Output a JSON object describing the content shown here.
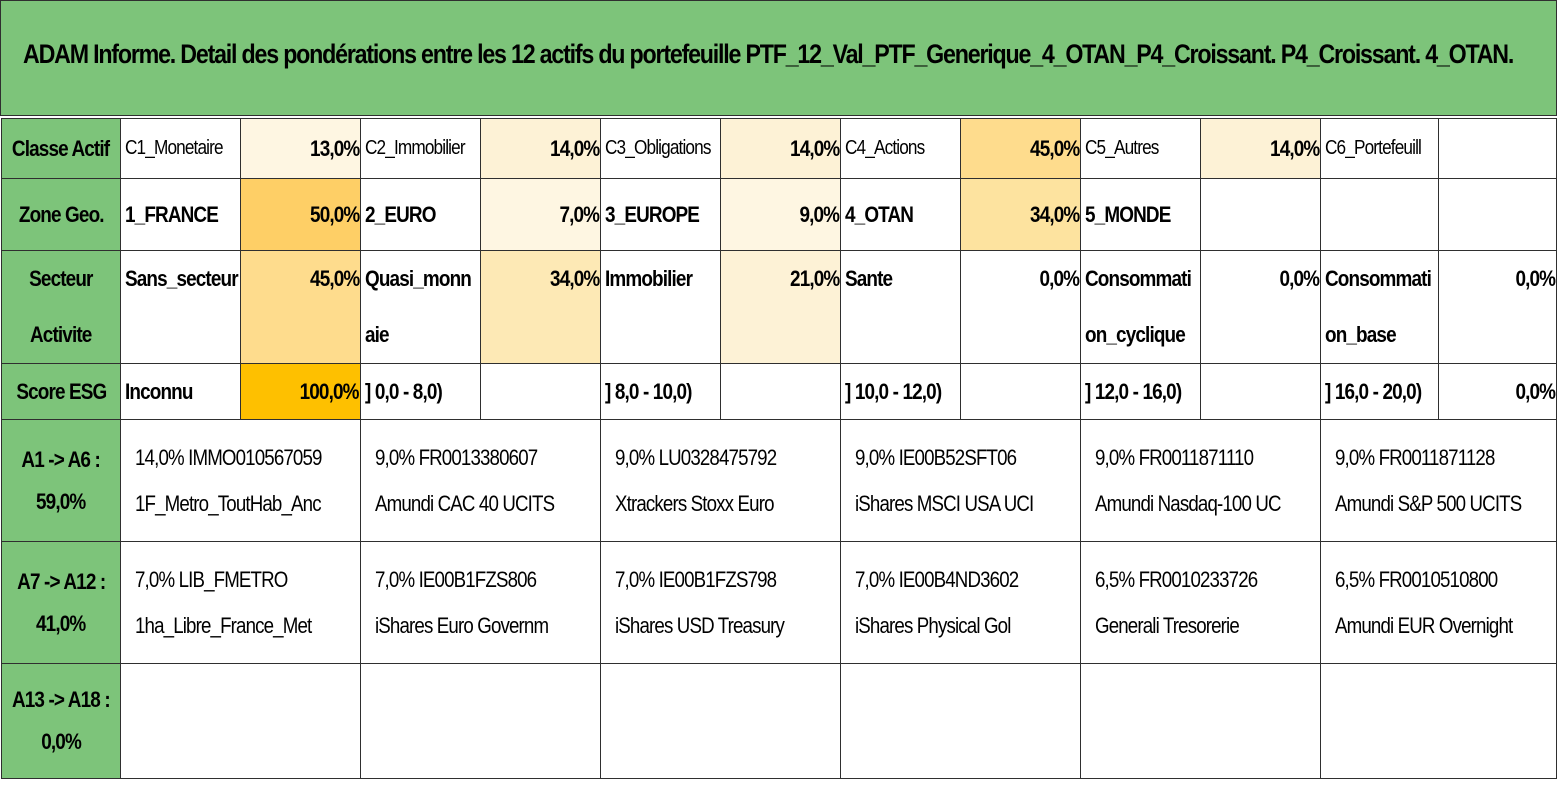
{
  "title": "ADAM Informe. Detail des pondérations entre les 12 actifs du portefeuille PTF_12_Val_PTF_Generique_4_OTAN_P4_Croissant. P4_Croissant. 4_OTAN.",
  "colors": {
    "header_green": "#7dc47a",
    "heat_light": "#fef6e2",
    "heat_max": "#fec000"
  },
  "rows": {
    "classe": {
      "label": "Classe Actif",
      "cells": [
        {
          "name": "C1_Monetaire",
          "pct": "13,0%"
        },
        {
          "name": "C2_Immobilier",
          "pct": "14,0%"
        },
        {
          "name": "C3_Obligations",
          "pct": "14,0%"
        },
        {
          "name": "C4_Actions",
          "pct": "45,0%"
        },
        {
          "name": "C5_Autres",
          "pct": "14,0%"
        },
        {
          "name": "C6_Portefeuill",
          "pct": ""
        }
      ]
    },
    "zone": {
      "label": "Zone Geo.",
      "cells": [
        {
          "name": "1_FRANCE",
          "pct": "50,0%"
        },
        {
          "name": "2_EURO",
          "pct": "7,0%"
        },
        {
          "name": "3_EUROPE",
          "pct": "9,0%"
        },
        {
          "name": "4_OTAN",
          "pct": "34,0%"
        },
        {
          "name": "5_MONDE",
          "pct": ""
        },
        {
          "name": "",
          "pct": ""
        }
      ]
    },
    "secteur": {
      "label_line1": "Secteur",
      "label_line2": "Activite",
      "cells": [
        {
          "line1": "Sans_secteur",
          "line2": "",
          "pct": "45,0%"
        },
        {
          "line1": "Quasi_monn",
          "line2": "aie",
          "pct": "34,0%"
        },
        {
          "line1": "Immobilier",
          "line2": "",
          "pct": "21,0%"
        },
        {
          "line1": "Sante",
          "line2": "",
          "pct": "0,0%"
        },
        {
          "line1": "Consommati",
          "line2": "on_cyclique",
          "pct": "0,0%"
        },
        {
          "line1": "Consommati",
          "line2": "on_base",
          "pct": "0,0%"
        }
      ]
    },
    "esg": {
      "label": "Score ESG",
      "cells": [
        {
          "name": "Inconnu",
          "pct": "100,0%"
        },
        {
          "name": "] 0,0 - 8,0)",
          "pct": ""
        },
        {
          "name": "] 8,0 - 10,0)",
          "pct": ""
        },
        {
          "name": "] 10,0 - 12,0)",
          "pct": ""
        },
        {
          "name": "] 12,0 - 16,0)",
          "pct": ""
        },
        {
          "name": "] 16,0 - 20,0)",
          "pct": "0,0%"
        }
      ]
    }
  },
  "asset_groups": [
    {
      "label_line1": "A1 -> A6 :",
      "label_line2": "59,0%",
      "assets": [
        {
          "line1": "14,0% IMMO010567059",
          "line2": "1F_Metro_ToutHab_Anc"
        },
        {
          "line1": "9,0% FR0013380607",
          "line2": "Amundi CAC 40 UCITS"
        },
        {
          "line1": "9,0% LU0328475792",
          "line2": "Xtrackers Stoxx Euro"
        },
        {
          "line1": "9,0% IE00B52SFT06",
          "line2": "iShares MSCI USA UCI"
        },
        {
          "line1": "9,0% FR0011871110",
          "line2": "Amundi Nasdaq-100 UC"
        },
        {
          "line1": "9,0% FR0011871128",
          "line2": "Amundi S&P 500 UCITS"
        }
      ]
    },
    {
      "label_line1": "A7 -> A12 :",
      "label_line2": "41,0%",
      "assets": [
        {
          "line1": "7,0% LIB_FMETRO",
          "line2": "1ha_Libre_France_Met"
        },
        {
          "line1": "7,0% IE00B1FZS806",
          "line2": "iShares Euro Governm"
        },
        {
          "line1": "7,0% IE00B1FZS798",
          "line2": "iShares USD Treasury"
        },
        {
          "line1": "7,0% IE00B4ND3602",
          "line2": "iShares Physical Gol"
        },
        {
          "line1": "6,5% FR0010233726",
          "line2": "Generali Tresorerie"
        },
        {
          "line1": "6,5% FR0010510800",
          "line2": "Amundi EUR Overnight"
        }
      ]
    },
    {
      "label_line1": "A13 -> A18 :",
      "label_line2": "0,0%",
      "assets": []
    }
  ]
}
